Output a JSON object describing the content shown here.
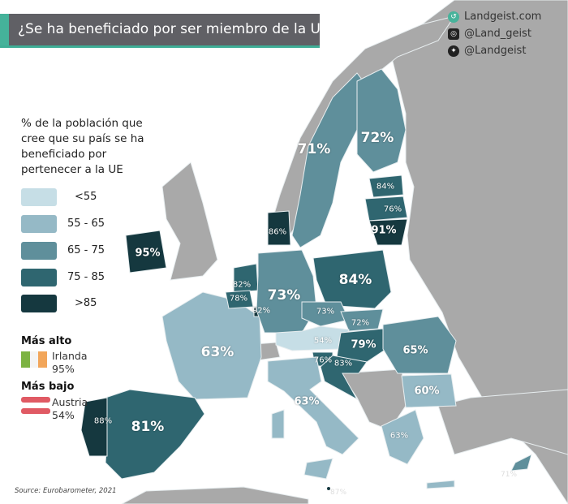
{
  "title": "¿Se ha beneficiado por ser miembro de la UE?",
  "social": {
    "website": "Landgeist.com",
    "instagram": "@Land_geist",
    "twitter": "@Landgeist"
  },
  "legend": {
    "title": "% de la población que cree que su país se ha beneficiado por pertenecer a la UE",
    "bins": [
      {
        "label": "<55",
        "color": "#c6dee6"
      },
      {
        "label": "55 - 65",
        "color": "#95b9c6"
      },
      {
        "label": "65 - 75",
        "color": "#5f8f9b"
      },
      {
        "label": "75 - 85",
        "color": "#2f6670"
      },
      {
        "label": ">85",
        "color": "#15383f"
      }
    ],
    "no_data_color": "#a9a9a9"
  },
  "highest": {
    "heading": "Más alto",
    "country": "Irlanda",
    "value": "95%"
  },
  "lowest": {
    "heading": "Más bajo",
    "country": "Austria",
    "value": "54%"
  },
  "source": "Source: Eurobarometer, 2021",
  "countries": {
    "finland": {
      "value": 72,
      "label": "72%"
    },
    "sweden": {
      "value": 71,
      "label": "71%"
    },
    "estonia": {
      "value": 84,
      "label": "84%"
    },
    "latvia": {
      "value": 76,
      "label": "76%"
    },
    "lithuania": {
      "value": 91,
      "label": "91%"
    },
    "denmark": {
      "value": 86,
      "label": "86%"
    },
    "ireland": {
      "value": 95,
      "label": "95%"
    },
    "poland": {
      "value": 84,
      "label": "84%"
    },
    "germany": {
      "value": 73,
      "label": "73%"
    },
    "netherlands": {
      "value": 82,
      "label": "82%"
    },
    "belgium": {
      "value": 78,
      "label": "78%"
    },
    "luxembourg": {
      "value": 92,
      "label": "92%"
    },
    "czechia": {
      "value": 73,
      "label": "73%"
    },
    "slovakia": {
      "value": 72,
      "label": "72%"
    },
    "austria": {
      "value": 54,
      "label": "54%"
    },
    "hungary": {
      "value": 79,
      "label": "79%"
    },
    "slovenia": {
      "value": 76,
      "label": "76%"
    },
    "croatia": {
      "value": 83,
      "label": "83%"
    },
    "romania": {
      "value": 65,
      "label": "65%"
    },
    "bulgaria": {
      "value": 60,
      "label": "60%"
    },
    "france": {
      "value": 63,
      "label": "63%"
    },
    "italy": {
      "value": 63,
      "label": "63%"
    },
    "greece": {
      "value": 63,
      "label": "63%"
    },
    "spain": {
      "value": 81,
      "label": "81%"
    },
    "portugal": {
      "value": 88,
      "label": "88%"
    },
    "malta": {
      "value": 87,
      "label": "87%"
    },
    "cyprus": {
      "value": 71,
      "label": "71%"
    }
  }
}
